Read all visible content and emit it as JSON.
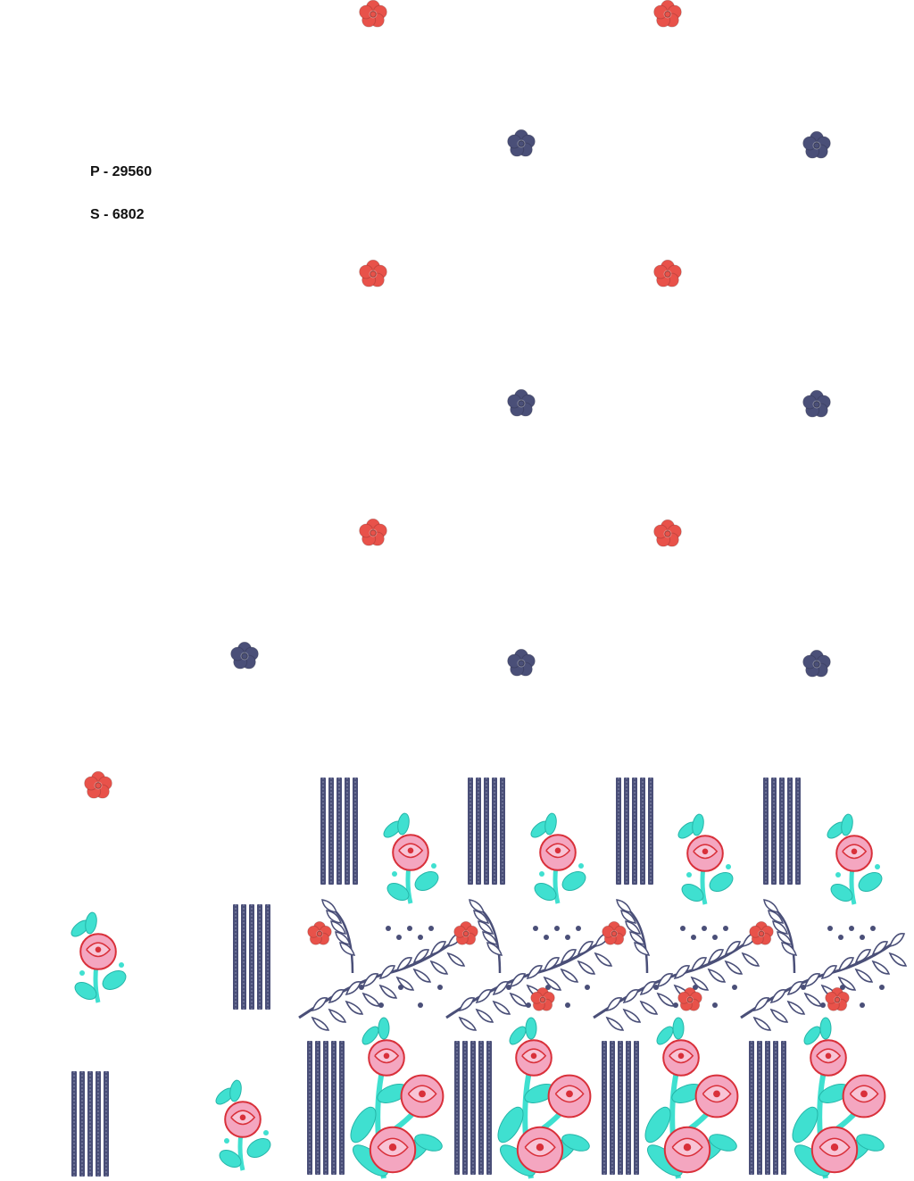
{
  "design": {
    "p_code": "P - 29560",
    "s_code": "S - 6802"
  },
  "colors": {
    "red_flower": "#e8524a",
    "navy": "#4a4f78",
    "rose_pink": "#f4a6c0",
    "rose_outline": "#d9303a",
    "leaf_cyan": "#3fe0d0"
  },
  "motifs": [
    "small-red-flower",
    "small-navy-flower",
    "stripe-block",
    "rose-sprig",
    "rose-bouquet",
    "fern-vine"
  ]
}
